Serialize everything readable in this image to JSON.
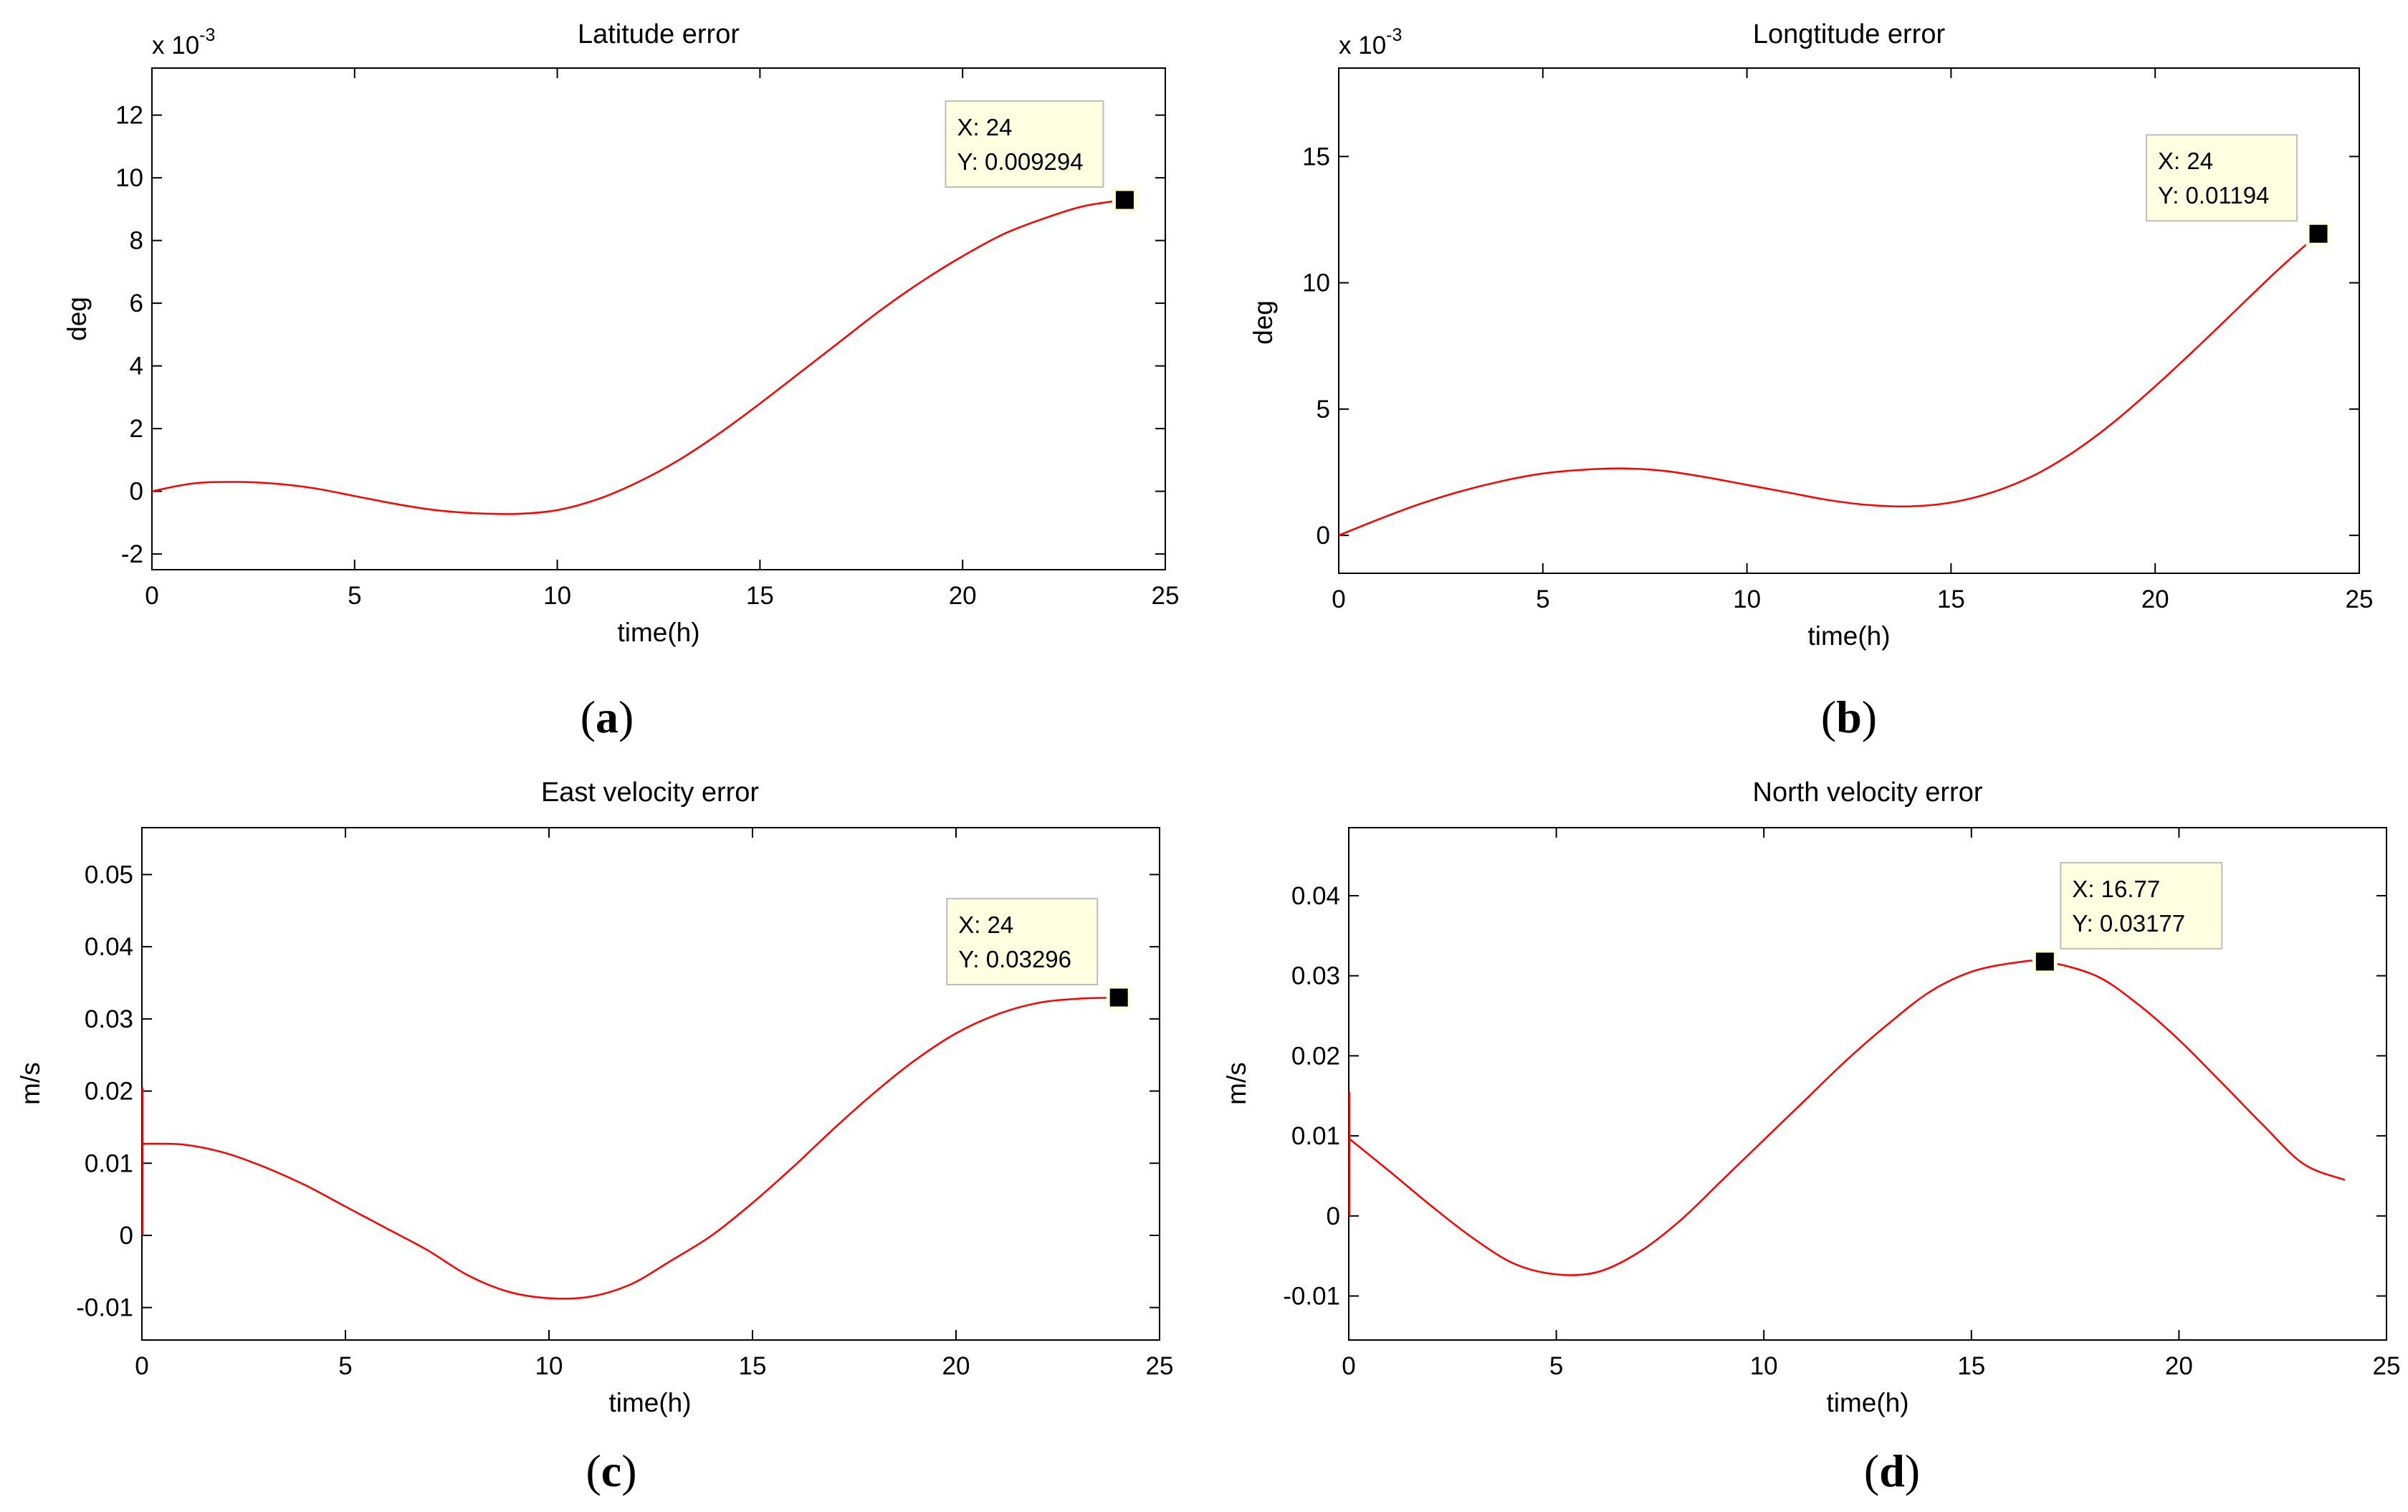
{
  "chart_data": [
    {
      "type": "line",
      "panel": "(a)",
      "panel_paren_open": "(",
      "panel_letter": "a",
      "panel_paren_close": ")",
      "title": "Latitude error",
      "xlabel": "time(h)",
      "ylabel": "deg",
      "exponent_base": "x 10",
      "exponent_power": "-3",
      "xlim": [
        0,
        25
      ],
      "ylim": [
        -2.5,
        13.5
      ],
      "xticks": [
        0,
        5,
        10,
        15,
        20,
        25
      ],
      "xtick_labels": [
        "0",
        "5",
        "10",
        "15",
        "20",
        "25"
      ],
      "yticks": [
        -2,
        0,
        2,
        4,
        6,
        8,
        10,
        12
      ],
      "ytick_labels": [
        "-2",
        "0",
        "2",
        "4",
        "6",
        "8",
        "10",
        "12"
      ],
      "line_color": "#ff0000",
      "series": [
        {
          "name": "Latitude error",
          "x": [
            0,
            1,
            2,
            3,
            4,
            5,
            6,
            7,
            8,
            9,
            10,
            11,
            12,
            13,
            14,
            15,
            16,
            17,
            18,
            19,
            20,
            21,
            22,
            23,
            24
          ],
          "y": [
            0,
            0.25,
            0.3,
            0.25,
            0.1,
            -0.15,
            -0.4,
            -0.6,
            -0.7,
            -0.72,
            -0.6,
            -0.25,
            0.3,
            1.0,
            1.85,
            2.8,
            3.8,
            4.8,
            5.8,
            6.7,
            7.5,
            8.2,
            8.7,
            9.1,
            9.294
          ]
        }
      ],
      "datatip": {
        "x": 24,
        "y": 9.294,
        "text_x": "X: 24",
        "text_y": "Y: 0.009294",
        "box_anchor": "left"
      }
    },
    {
      "type": "line",
      "panel": "(b)",
      "panel_paren_open": "(",
      "panel_letter": "b",
      "panel_paren_close": ")",
      "title": "Longtitude error",
      "xlabel": "time(h)",
      "ylabel": "deg",
      "exponent_base": "x 10",
      "exponent_power": "-3",
      "xlim": [
        0,
        25
      ],
      "ylim": [
        -1.5,
        18.5
      ],
      "xticks": [
        0,
        5,
        10,
        15,
        20,
        25
      ],
      "xtick_labels": [
        "0",
        "5",
        "10",
        "15",
        "20",
        "25"
      ],
      "yticks": [
        0,
        5,
        10,
        15
      ],
      "ytick_labels": [
        "0",
        "5",
        "10",
        "15"
      ],
      "line_color": "#ff0000",
      "series": [
        {
          "name": "Longitude error",
          "x": [
            0,
            1,
            2,
            3,
            4,
            5,
            6,
            7,
            8,
            9,
            10,
            11,
            12,
            13,
            14,
            15,
            16,
            17,
            18,
            19,
            20,
            21,
            22,
            23,
            24
          ],
          "y": [
            0,
            0.65,
            1.25,
            1.75,
            2.15,
            2.45,
            2.6,
            2.65,
            2.55,
            2.3,
            2.0,
            1.7,
            1.4,
            1.2,
            1.15,
            1.3,
            1.7,
            2.35,
            3.3,
            4.5,
            5.9,
            7.4,
            8.95,
            10.5,
            11.94
          ]
        }
      ],
      "datatip": {
        "x": 24,
        "y": 11.94,
        "text_x": "X: 24",
        "text_y": "Y: 0.01194",
        "box_anchor": "left"
      }
    },
    {
      "type": "line",
      "panel": "(c)",
      "panel_paren_open": "(",
      "panel_letter": "c",
      "panel_paren_close": ")",
      "title": "East velocity error",
      "xlabel": "time(h)",
      "ylabel": "m/s",
      "xlim": [
        0,
        25
      ],
      "ylim": [
        -0.0145,
        0.0565
      ],
      "xticks": [
        0,
        5,
        10,
        15,
        20,
        25
      ],
      "xtick_labels": [
        "0",
        "5",
        "10",
        "15",
        "20",
        "25"
      ],
      "yticks": [
        -0.01,
        0,
        0.01,
        0.02,
        0.03,
        0.04,
        0.05
      ],
      "ytick_labels": [
        "-0.01",
        "0",
        "0.01",
        "0.02",
        "0.03",
        "0.04",
        "0.05"
      ],
      "line_color": "#ff0000",
      "spike": {
        "x": 0,
        "y_from": 0.0,
        "y_to": 0.0205
      },
      "series": [
        {
          "name": "East velocity error",
          "x": [
            0,
            1,
            2,
            3,
            4,
            5,
            6,
            7,
            8,
            9,
            10,
            11,
            12,
            13,
            14,
            15,
            16,
            17,
            18,
            19,
            20,
            21,
            22,
            23,
            24
          ],
          "y": [
            0.0127,
            0.0126,
            0.0115,
            0.0095,
            0.007,
            0.004,
            0.001,
            -0.002,
            -0.0055,
            -0.0078,
            -0.0087,
            -0.0085,
            -0.0068,
            -0.0035,
            0.0,
            0.0045,
            0.0095,
            0.0148,
            0.0198,
            0.0243,
            0.028,
            0.0306,
            0.0322,
            0.0328,
            0.03296
          ]
        }
      ],
      "datatip": {
        "x": 24,
        "y": 0.03296,
        "text_x": "X: 24",
        "text_y": "Y: 0.03296",
        "box_anchor": "left"
      }
    },
    {
      "type": "line",
      "panel": "(d)",
      "panel_paren_open": "(",
      "panel_letter": "d",
      "panel_paren_close": ")",
      "title": "North velocity error",
      "xlabel": "time(h)",
      "ylabel": "m/s",
      "xlim": [
        0,
        25
      ],
      "ylim": [
        -0.0155,
        0.0485
      ],
      "xticks": [
        0,
        5,
        10,
        15,
        20,
        25
      ],
      "xtick_labels": [
        "0",
        "5",
        "10",
        "15",
        "20",
        "25"
      ],
      "yticks": [
        -0.01,
        0,
        0.01,
        0.02,
        0.03,
        0.04
      ],
      "ytick_labels": [
        "-0.01",
        "0",
        "0.01",
        "0.02",
        "0.03",
        "0.04"
      ],
      "line_color": "#ff0000",
      "spike": {
        "x": 0,
        "y_from": 0.0,
        "y_to": 0.0155
      },
      "series": [
        {
          "name": "North velocity error",
          "x": [
            0,
            1,
            2,
            3,
            4,
            5,
            6,
            7,
            8,
            9,
            10,
            11,
            12,
            13,
            14,
            15,
            16,
            16.77,
            18,
            19,
            20,
            21,
            22,
            23,
            24
          ],
          "y": [
            0.0097,
            0.0055,
            0.0012,
            -0.0028,
            -0.006,
            -0.0073,
            -0.007,
            -0.0045,
            -0.0005,
            0.0045,
            0.0095,
            0.0145,
            0.0195,
            0.024,
            0.028,
            0.0305,
            0.0316,
            0.03177,
            0.03,
            0.0265,
            0.022,
            0.0168,
            0.0115,
            0.0065,
            0.0045
          ]
        }
      ],
      "datatip": {
        "x": 16.77,
        "y": 0.03177,
        "text_x": "X: 16.77",
        "text_y": "Y: 0.03177",
        "box_anchor": "right"
      }
    }
  ]
}
